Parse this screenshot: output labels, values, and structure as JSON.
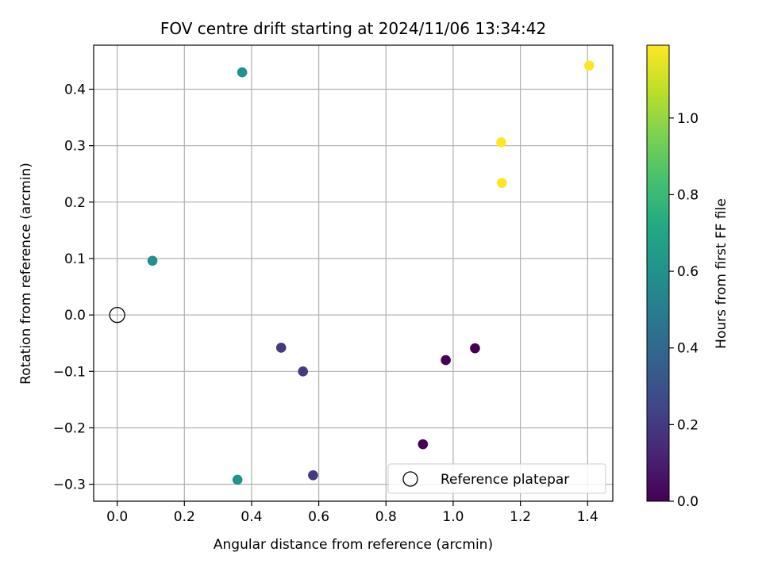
{
  "chart_data": {
    "type": "scatter",
    "title": "FOV centre drift starting at 2024/11/06 13:34:42",
    "xlabel": "Angular distance from reference (arcmin)",
    "ylabel": "Rotation from reference (arcmin)",
    "xlim": [
      -0.07,
      1.475
    ],
    "ylim": [
      -0.33,
      0.478
    ],
    "x_ticks": [
      0.0,
      0.2,
      0.4,
      0.6,
      0.8,
      1.0,
      1.2,
      1.4
    ],
    "x_tick_labels": [
      "0.0",
      "0.2",
      "0.4",
      "0.6",
      "0.8",
      "1.0",
      "1.2",
      "1.4"
    ],
    "y_ticks": [
      -0.3,
      -0.2,
      -0.1,
      0.0,
      0.1,
      0.2,
      0.3,
      0.4
    ],
    "y_tick_labels": [
      "−0.3",
      "−0.2",
      "−0.1",
      "0.0",
      "0.1",
      "0.2",
      "0.3",
      "0.4"
    ],
    "grid": true,
    "colormap": "viridis",
    "colorbar": {
      "label": "Hours from first FF file",
      "range": [
        0.0,
        1.19
      ],
      "ticks": [
        0.0,
        0.2,
        0.4,
        0.6,
        0.8,
        1.0
      ],
      "tick_labels": [
        "0.0",
        "0.2",
        "0.4",
        "0.6",
        "0.8",
        "1.0"
      ]
    },
    "legend": {
      "placement": "lower-right",
      "entries": [
        {
          "label": "Reference platepar"
        }
      ]
    },
    "reference_point": {
      "x": 0.0,
      "y": 0.0
    },
    "points": [
      {
        "x": 0.91,
        "y": -0.229,
        "hours": 0.0
      },
      {
        "x": 0.978,
        "y": -0.08,
        "hours": 0.0
      },
      {
        "x": 1.065,
        "y": -0.059,
        "hours": 0.0
      },
      {
        "x": 0.488,
        "y": -0.058,
        "hours": 0.2
      },
      {
        "x": 0.553,
        "y": -0.1,
        "hours": 0.2
      },
      {
        "x": 0.583,
        "y": -0.284,
        "hours": 0.2
      },
      {
        "x": 0.105,
        "y": 0.096,
        "hours": 0.6
      },
      {
        "x": 0.372,
        "y": 0.43,
        "hours": 0.6
      },
      {
        "x": 0.358,
        "y": -0.292,
        "hours": 0.6
      },
      {
        "x": 1.143,
        "y": 0.306,
        "hours": 1.19
      },
      {
        "x": 1.145,
        "y": 0.234,
        "hours": 1.19
      },
      {
        "x": 1.405,
        "y": 0.442,
        "hours": 1.19
      }
    ]
  }
}
